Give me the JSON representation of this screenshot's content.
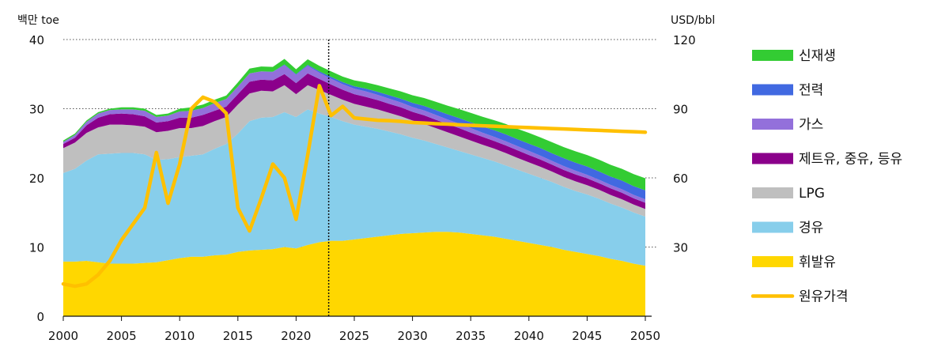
{
  "chart_data": {
    "type": "area",
    "left_unit": "백만 toe",
    "right_unit": "USD/bbl",
    "x": [
      2000,
      2001,
      2002,
      2003,
      2004,
      2005,
      2006,
      2007,
      2008,
      2009,
      2010,
      2011,
      2012,
      2013,
      2014,
      2015,
      2016,
      2017,
      2018,
      2019,
      2020,
      2021,
      2022,
      2023,
      2024,
      2025,
      2026,
      2027,
      2028,
      2029,
      2030,
      2031,
      2032,
      2033,
      2034,
      2035,
      2036,
      2037,
      2038,
      2039,
      2040,
      2041,
      2042,
      2043,
      2044,
      2045,
      2046,
      2047,
      2048,
      2049,
      2050
    ],
    "xticks": [
      "2000",
      "2005",
      "2010",
      "2015",
      "2020",
      "2025",
      "2030",
      "2035",
      "2040",
      "2045",
      "2050"
    ],
    "ylim": [
      0,
      40
    ],
    "yticks_left": [
      "0",
      "10",
      "20",
      "30",
      "40"
    ],
    "ylim_right": [
      0,
      120
    ],
    "yticks_right": [
      "30",
      "60",
      "90",
      "120"
    ],
    "series": [
      {
        "name": "휘발유",
        "color": "#FFD700",
        "values": [
          7.9,
          7.9,
          8.0,
          7.8,
          7.6,
          7.6,
          7.6,
          7.7,
          7.8,
          8.1,
          8.4,
          8.6,
          8.6,
          8.8,
          8.9,
          9.3,
          9.5,
          9.6,
          9.7,
          10.0,
          9.8,
          10.3,
          10.7,
          10.9,
          10.9,
          11.1,
          11.3,
          11.5,
          11.7,
          11.9,
          12.0,
          12.1,
          12.2,
          12.2,
          12.1,
          11.9,
          11.7,
          11.5,
          11.2,
          10.9,
          10.6,
          10.3,
          10.0,
          9.6,
          9.3,
          9.0,
          8.7,
          8.3,
          8.0,
          7.6,
          7.3
        ]
      },
      {
        "name": "경유",
        "color": "#87CEEB",
        "values": [
          12.8,
          13.4,
          14.5,
          15.6,
          15.9,
          16.0,
          16.0,
          15.7,
          14.8,
          14.6,
          14.6,
          14.6,
          14.8,
          15.4,
          16.0,
          17.1,
          18.7,
          19.1,
          19.1,
          19.5,
          19.0,
          19.6,
          18.6,
          17.9,
          17.3,
          16.6,
          16.1,
          15.6,
          15.0,
          14.4,
          13.8,
          13.3,
          12.7,
          12.2,
          11.8,
          11.5,
          11.2,
          10.9,
          10.6,
          10.3,
          10.0,
          9.7,
          9.4,
          9.1,
          8.8,
          8.6,
          8.3,
          8.0,
          7.7,
          7.4,
          7.1
        ]
      },
      {
        "name": "LPG",
        "color": "#BFBFBF",
        "values": [
          3.6,
          3.8,
          4.0,
          3.9,
          4.2,
          4.1,
          4.0,
          4.0,
          4.0,
          4.1,
          4.2,
          4.0,
          4.1,
          4.0,
          3.9,
          4.2,
          4.0,
          3.9,
          3.7,
          3.9,
          3.3,
          3.5,
          3.4,
          3.2,
          3.1,
          3.0,
          2.9,
          2.8,
          2.7,
          2.6,
          2.5,
          2.4,
          2.3,
          2.2,
          2.1,
          2.0,
          1.9,
          1.85,
          1.8,
          1.7,
          1.65,
          1.6,
          1.5,
          1.45,
          1.4,
          1.35,
          1.3,
          1.25,
          1.2,
          1.15,
          1.1
        ]
      },
      {
        "name": "제트유, 중유, 등유",
        "color": "#8B008B",
        "values": [
          0.6,
          0.7,
          1.1,
          1.4,
          1.5,
          1.6,
          1.6,
          1.5,
          1.4,
          1.4,
          1.5,
          1.5,
          1.6,
          1.5,
          1.5,
          1.5,
          1.7,
          1.6,
          1.6,
          1.6,
          1.6,
          1.7,
          1.6,
          1.5,
          1.45,
          1.4,
          1.4,
          1.35,
          1.3,
          1.3,
          1.25,
          1.25,
          1.2,
          1.2,
          1.2,
          1.15,
          1.15,
          1.1,
          1.1,
          1.1,
          1.05,
          1.05,
          1.0,
          1.0,
          1.0,
          1.0,
          0.95,
          0.95,
          0.95,
          0.9,
          0.9
        ]
      },
      {
        "name": "가스",
        "color": "#9370DB",
        "values": [
          0.3,
          0.4,
          0.5,
          0.6,
          0.6,
          0.6,
          0.7,
          0.8,
          0.8,
          0.8,
          0.9,
          1.0,
          1.0,
          1.1,
          1.1,
          1.1,
          1.2,
          1.2,
          1.2,
          1.3,
          1.2,
          1.1,
          0.9,
          0.85,
          0.8,
          0.8,
          0.8,
          0.75,
          0.75,
          0.7,
          0.7,
          0.7,
          0.7,
          0.65,
          0.65,
          0.65,
          0.6,
          0.6,
          0.6,
          0.6,
          0.6,
          0.55,
          0.55,
          0.55,
          0.55,
          0.5,
          0.5,
          0.5,
          0.5,
          0.5,
          0.5
        ]
      },
      {
        "name": "전력",
        "color": "#4169E1",
        "values": [
          0,
          0,
          0,
          0,
          0,
          0,
          0,
          0,
          0,
          0,
          0,
          0,
          0,
          0,
          0,
          0,
          0,
          0,
          0.05,
          0.1,
          0.1,
          0.15,
          0.2,
          0.25,
          0.3,
          0.35,
          0.4,
          0.45,
          0.5,
          0.55,
          0.6,
          0.65,
          0.7,
          0.75,
          0.8,
          0.85,
          0.9,
          0.95,
          1.0,
          1.0,
          1.05,
          1.1,
          1.1,
          1.15,
          1.15,
          1.2,
          1.2,
          1.2,
          1.25,
          1.25,
          1.3
        ]
      },
      {
        "name": "신재생",
        "color": "#33CC33",
        "values": [
          0.2,
          0.2,
          0.2,
          0.2,
          0.2,
          0.3,
          0.3,
          0.3,
          0.3,
          0.3,
          0.4,
          0.5,
          0.5,
          0.5,
          0.5,
          0.6,
          0.7,
          0.7,
          0.7,
          0.8,
          0.7,
          0.8,
          0.8,
          0.8,
          0.8,
          0.85,
          0.9,
          0.95,
          1.0,
          1.05,
          1.1,
          1.15,
          1.2,
          1.25,
          1.3,
          1.35,
          1.4,
          1.45,
          1.5,
          1.5,
          1.55,
          1.55,
          1.6,
          1.6,
          1.65,
          1.65,
          1.7,
          1.7,
          1.7,
          1.75,
          1.75
        ]
      }
    ],
    "line": {
      "name": "원유가격",
      "color": "#FFC000",
      "axis": "right",
      "x": [
        2000,
        2001,
        2002,
        2003,
        2004,
        2005,
        2006,
        2007,
        2008,
        2009,
        2010,
        2011,
        2012,
        2013,
        2014,
        2015,
        2016,
        2017,
        2018,
        2019,
        2020,
        2021,
        2022,
        2023,
        2024,
        2025,
        2026,
        2027,
        2028,
        2029,
        2030,
        2031,
        2032,
        2033,
        2034,
        2035,
        2036,
        2037,
        2038,
        2039,
        2040,
        2041,
        2042,
        2043,
        2044,
        2045,
        2046,
        2047,
        2048,
        2049,
        2050
      ],
      "values": [
        14,
        13,
        14,
        18,
        24,
        33,
        40,
        47,
        71,
        49,
        66,
        90,
        95,
        93,
        88,
        47,
        37,
        51,
        66,
        60,
        42,
        70,
        100,
        87,
        91,
        86,
        85.5,
        85,
        84.8,
        84.5,
        84,
        83.8,
        83.5,
        83.3,
        83,
        82.8,
        82.6,
        82.4,
        82.2,
        82,
        81.8,
        81.6,
        81.4,
        81.2,
        81,
        80.8,
        80.6,
        80.4,
        80.2,
        80,
        79.8
      ]
    },
    "projection_line_year": 2022.8,
    "legend_order": [
      "신재생",
      "전력",
      "가스",
      "제트유, 중유, 등유",
      "LPG",
      "경유",
      "휘발유",
      "원유가격"
    ],
    "legend_position": "right",
    "grid": "dotted horizontal"
  }
}
